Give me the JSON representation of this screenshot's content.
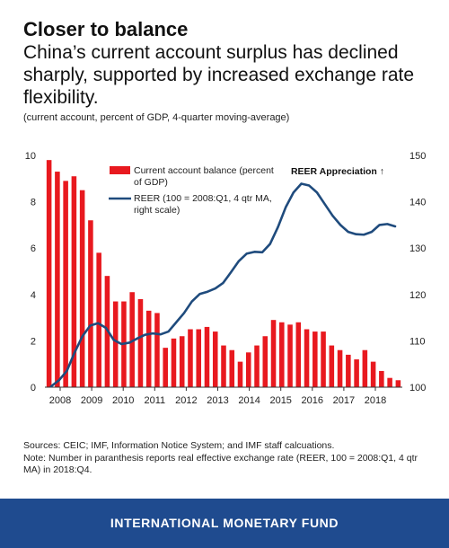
{
  "header": {
    "title": "Closer to balance",
    "subtitle": "China’s current account surplus has declined sharply, supported by increased exchange rate flexibility.",
    "units": "(current account, percent of GDP, 4-quarter moving-average)"
  },
  "chart_data": {
    "type": "bar+line",
    "x_tick_labels": [
      "2008",
      "2009",
      "2010",
      "2011",
      "2012",
      "2013",
      "2014",
      "2015",
      "2016",
      "2017",
      "2018"
    ],
    "left_axis": {
      "ylim": [
        0,
        10
      ],
      "ticks": [
        "0",
        "2",
        "4",
        "6",
        "8",
        "10"
      ]
    },
    "right_axis": {
      "ylim": [
        100,
        150
      ],
      "ticks": [
        "100",
        "110",
        "120",
        "130",
        "140",
        "150"
      ]
    },
    "annotation": "REER Appreciation ↑",
    "series": [
      {
        "name": "Current account balance (percent of GDP)",
        "type": "bar",
        "axis": "left",
        "color": "#e8191f",
        "values": [
          9.8,
          9.3,
          8.9,
          9.1,
          8.5,
          7.2,
          5.8,
          4.8,
          3.7,
          3.7,
          4.1,
          3.8,
          3.3,
          3.2,
          1.7,
          2.1,
          2.2,
          2.5,
          2.5,
          2.6,
          2.4,
          1.8,
          1.6,
          1.1,
          1.5,
          1.8,
          2.2,
          2.9,
          2.8,
          2.7,
          2.8,
          2.5,
          2.4,
          2.4,
          1.8,
          1.6,
          1.4,
          1.2,
          1.6,
          1.1,
          0.7,
          0.4,
          0.3
        ]
      },
      {
        "name": "REER (100 = 2008:Q1, 4 qtr MA, right scale)",
        "type": "line",
        "axis": "right",
        "color": "#1f4b7d",
        "values": [
          100.2,
          101.5,
          103.5,
          107.5,
          111,
          113.3,
          113.8,
          112.8,
          110.2,
          109.3,
          109.6,
          110.5,
          111.3,
          111.6,
          111.4,
          112,
          114,
          116,
          118.5,
          120.1,
          120.6,
          121.3,
          122.5,
          124.8,
          127.2,
          128.8,
          129.2,
          129.1,
          130.9,
          134.5,
          138.8,
          142,
          143.9,
          143.5,
          142,
          139.5,
          137,
          135,
          133.5,
          133,
          132.9,
          133.5,
          135,
          135.2,
          134.7
        ]
      }
    ]
  },
  "footer": {
    "sources": "Sources: CEIC; IMF, Information Notice System; and IMF staff calcuations.",
    "note": "Note: Number in paranthesis reports real effective exchange rate (REER, 100 = 2008:Q1, 4 qtr MA) in 2018:Q4."
  },
  "banner": {
    "text": "INTERNATIONAL MONETARY FUND"
  }
}
